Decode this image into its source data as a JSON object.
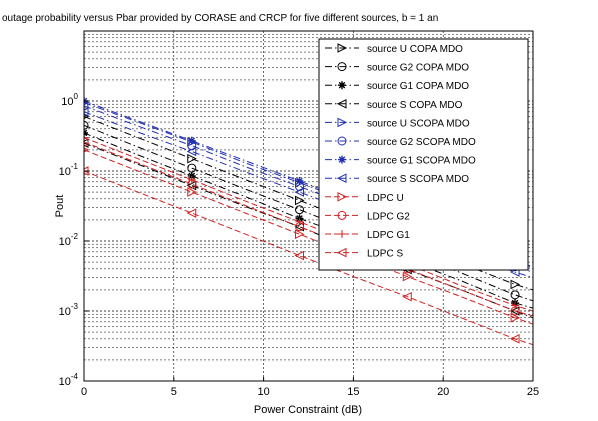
{
  "chart_data": {
    "type": "line",
    "title": "outage probability versus Pbar provided by CORASE and CRCP for five different sources, b = 1 an",
    "xlabel": "Power Constraint (dB)",
    "ylabel": "Pout",
    "x_ticks": [
      "0",
      "5",
      "10",
      "15",
      "20",
      "25"
    ],
    "y_tick_exponents": [
      "0",
      "-1",
      "-2",
      "-3",
      "-4"
    ],
    "y_tick_base": "10",
    "xlim": [
      0,
      25
    ],
    "ylim": [
      0.0001,
      10
    ],
    "y_scale": "log",
    "grid": true,
    "legend_position": "top-right",
    "x": [
      0,
      3,
      6,
      9,
      12,
      15,
      18,
      21,
      24,
      25
    ],
    "series": [
      {
        "name": "source U COPA MDO",
        "color": "#000000",
        "dash": "dashdot",
        "marker": "triangle-right",
        "values": [
          0.6,
          0.3,
          0.15,
          0.075,
          0.038,
          0.019,
          0.0095,
          0.0048,
          0.0024,
          0.002
        ]
      },
      {
        "name": "source G2 COPA MDO",
        "color": "#000000",
        "dash": "dashdot",
        "marker": "circle",
        "values": [
          0.45,
          0.22,
          0.11,
          0.055,
          0.028,
          0.014,
          0.007,
          0.0035,
          0.0017,
          0.0014
        ]
      },
      {
        "name": "source G1 COPA MDO",
        "color": "#000000",
        "dash": "dashdot",
        "marker": "star",
        "values": [
          0.35,
          0.17,
          0.085,
          0.043,
          0.021,
          0.011,
          0.0053,
          0.0027,
          0.0013,
          0.0011
        ]
      },
      {
        "name": "source S COPA MDO",
        "color": "#000000",
        "dash": "dashdot",
        "marker": "triangle-left",
        "values": [
          0.25,
          0.125,
          0.062,
          0.031,
          0.016,
          0.0078,
          0.0039,
          0.002,
          0.001,
          0.0008
        ]
      },
      {
        "name": "source U SCOPA MDO",
        "color": "#1f2fb0",
        "dash": "dashdot",
        "marker": "triangle-right",
        "values": [
          0.95,
          0.5,
          0.26,
          0.13,
          0.068,
          0.035,
          0.018,
          0.0095,
          0.005,
          0.0041
        ]
      },
      {
        "name": "source G2 SCOPA MDO",
        "color": "#1f2fb0",
        "dash": "dashdot",
        "marker": "circle",
        "values": [
          0.85,
          0.44,
          0.23,
          0.115,
          0.06,
          0.031,
          0.016,
          0.0083,
          0.0043,
          0.0036
        ]
      },
      {
        "name": "source G1 SCOPA MDO",
        "color": "#1f2fb0",
        "dash": "dashdot",
        "marker": "star",
        "values": [
          1.0,
          0.52,
          0.27,
          0.14,
          0.072,
          0.037,
          0.019,
          0.01,
          0.0052,
          0.0043
        ]
      },
      {
        "name": "source S SCOPA MDO",
        "color": "#1f2fb0",
        "dash": "dashdot",
        "marker": "triangle-left",
        "values": [
          0.7,
          0.36,
          0.19,
          0.097,
          0.05,
          0.026,
          0.0133,
          0.0069,
          0.0036,
          0.003
        ]
      },
      {
        "name": "LDPC U",
        "color": "#d42020",
        "dash": "dashed",
        "marker": "triangle-right",
        "values": [
          0.2,
          0.1,
          0.05,
          0.025,
          0.0125,
          0.0062,
          0.0031,
          0.0016,
          0.0008,
          0.00065
        ]
      },
      {
        "name": "LDPC G2",
        "color": "#d42020",
        "dash": "dashed",
        "marker": "circle",
        "values": [
          0.26,
          0.13,
          0.065,
          0.032,
          0.016,
          0.0081,
          0.004,
          0.002,
          0.001,
          0.00085
        ]
      },
      {
        "name": "LDPC G1",
        "color": "#d42020",
        "dash": "dashed",
        "marker": "plus",
        "values": [
          0.3,
          0.15,
          0.075,
          0.037,
          0.0188,
          0.0094,
          0.0047,
          0.0023,
          0.0012,
          0.001
        ]
      },
      {
        "name": "LDPC S",
        "color": "#d42020",
        "dash": "dashed",
        "marker": "triangle-left",
        "values": [
          0.1,
          0.05,
          0.025,
          0.0125,
          0.0062,
          0.0031,
          0.0016,
          0.0008,
          0.0004,
          0.00033
        ]
      }
    ]
  }
}
